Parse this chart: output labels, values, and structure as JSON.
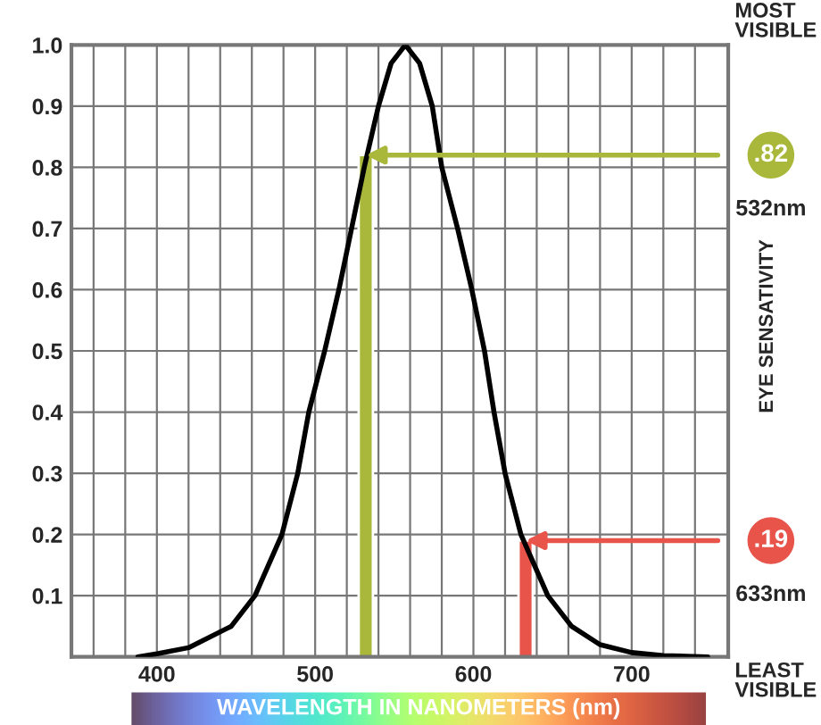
{
  "chart_data": {
    "type": "line",
    "xlabel": "WAVELENGTH IN NANOMETERS (nm)",
    "ylabel": "EYE SENSATIVITY",
    "annotations": [
      "MOST VISIBLE",
      "LEAST VISIBLE",
      ".82",
      "532nm",
      ".19",
      "633nm"
    ],
    "series": [
      {
        "color": "#000000",
        "x": [
          388,
          400,
          420,
          447,
          462,
          479,
          489,
          496,
          506,
          515,
          523,
          531,
          540,
          548,
          557,
          566,
          574,
          580,
          590,
          599,
          607,
          613,
          620,
          630,
          647,
          662,
          680,
          700,
          720,
          748
        ],
        "values": [
          0,
          0.005,
          0.015,
          0.05,
          0.1,
          0.2,
          0.3,
          0.4,
          0.5,
          0.6,
          0.7,
          0.8,
          0.9,
          0.97,
          1.0,
          0.97,
          0.9,
          0.8,
          0.7,
          0.6,
          0.5,
          0.4,
          0.3,
          0.2,
          0.1,
          0.05,
          0.02,
          0.007,
          0.002,
          0
        ]
      },
      {
        "type": "bar",
        "color": "#a9b83a",
        "x": [
          532
        ],
        "values": [
          0.82
        ]
      },
      {
        "type": "bar",
        "color": "#e8534a",
        "x": [
          633
        ],
        "values": [
          0.19
        ]
      }
    ],
    "xlim": [
      346,
      761
    ],
    "ylim": [
      0,
      1.0
    ],
    "xticks": [
      {
        "value": 360,
        "label": null
      },
      {
        "value": 380,
        "label": null
      },
      400,
      {
        "value": 420,
        "label": null
      },
      {
        "value": 440,
        "label": null
      },
      {
        "value": 460,
        "label": null
      },
      {
        "value": 480,
        "label": null
      },
      500,
      {
        "value": 520,
        "label": null
      },
      {
        "value": 540,
        "label": null
      },
      {
        "value": 560,
        "label": null
      },
      {
        "value": 580,
        "label": null
      },
      600,
      {
        "value": 620,
        "label": null
      },
      {
        "value": 640,
        "label": null
      },
      {
        "value": 660,
        "label": null
      },
      {
        "value": 680,
        "label": null
      },
      700,
      {
        "value": 720,
        "label": null
      },
      {
        "value": 740,
        "label": null
      }
    ],
    "yticks": [
      0.1,
      0.2,
      0.3,
      0.4,
      0.5,
      0.6,
      0.7,
      0.8,
      0.9,
      {
        "value": 1.0,
        "label": "1.0"
      }
    ],
    "grid": true,
    "legend": false
  }
}
